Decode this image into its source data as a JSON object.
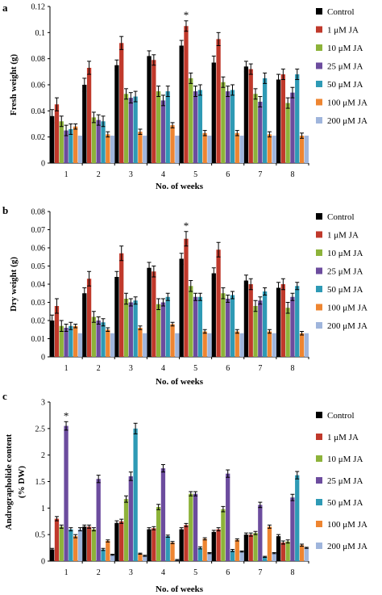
{
  "series_colors": [
    "#000000",
    "#c0392b",
    "#8db33a",
    "#6c4c9e",
    "#2e9ab5",
    "#ee8531",
    "#9fb5dc"
  ],
  "chart_data": [
    {
      "type": "bar",
      "panel_label": "a",
      "categories": [
        "1",
        "2",
        "3",
        "4",
        "5",
        "6",
        "7",
        "8"
      ],
      "xlabel": "No. of weeks",
      "ylabel": "Fresh weight (g)",
      "ylim": [
        0,
        0.12
      ],
      "yticks": [
        "0",
        "0.02",
        "0.04",
        "0.06",
        "0.08",
        "0.1",
        "0.12"
      ],
      "grid": false,
      "legend": "right",
      "annotation": {
        "text": "*",
        "category": "5",
        "series": "1 μM JA"
      },
      "series": [
        {
          "name": "Control",
          "values": [
            0.036,
            0.06,
            0.075,
            0.082,
            0.09,
            0.077,
            0.074,
            0.064
          ],
          "errors": [
            0.005,
            0.005,
            0.004,
            0.004,
            0.004,
            0.005,
            0.004,
            0.004
          ]
        },
        {
          "name": "1 μM JA",
          "values": [
            0.045,
            0.073,
            0.092,
            0.079,
            0.105,
            0.095,
            0.072,
            0.068
          ],
          "errors": [
            0.005,
            0.005,
            0.005,
            0.004,
            0.004,
            0.005,
            0.004,
            0.004
          ]
        },
        {
          "name": "10 μM JA",
          "values": [
            0.032,
            0.035,
            0.053,
            0.055,
            0.065,
            0.062,
            0.053,
            0.046
          ],
          "errors": [
            0.004,
            0.004,
            0.004,
            0.004,
            0.004,
            0.004,
            0.004,
            0.004
          ]
        },
        {
          "name": "25 μM JA",
          "values": [
            0.025,
            0.033,
            0.05,
            0.048,
            0.055,
            0.055,
            0.047,
            0.054
          ],
          "errors": [
            0.004,
            0.004,
            0.004,
            0.004,
            0.004,
            0.004,
            0.004,
            0.004
          ]
        },
        {
          "name": "50 μM JA",
          "values": [
            0.026,
            0.032,
            0.051,
            0.055,
            0.056,
            0.056,
            0.065,
            0.068
          ],
          "errors": [
            0.004,
            0.004,
            0.004,
            0.004,
            0.004,
            0.004,
            0.004,
            0.004
          ]
        },
        {
          "name": "100 μM JA",
          "values": [
            0.028,
            0.022,
            0.024,
            0.029,
            0.023,
            0.023,
            0.022,
            0.021
          ],
          "errors": [
            0.002,
            0.002,
            0.002,
            0.002,
            0.002,
            0.002,
            0.002,
            0.002
          ]
        },
        {
          "name": "200 μM JA",
          "values": [
            0.021,
            0.021,
            0.021,
            0.021,
            0.021,
            0.021,
            0.021,
            0.021
          ],
          "errors": [
            0,
            0,
            0,
            0,
            0,
            0,
            0,
            0
          ]
        }
      ]
    },
    {
      "type": "bar",
      "panel_label": "b",
      "categories": [
        "1",
        "2",
        "3",
        "4",
        "5",
        "6",
        "7",
        "8"
      ],
      "xlabel": "No. of weeks",
      "ylabel": "Dry weight (g)",
      "ylim": [
        0,
        0.08
      ],
      "yticks": [
        "0",
        "0.01",
        "0.02",
        "0.03",
        "0.04",
        "0.05",
        "0.06",
        "0.07",
        "0.08"
      ],
      "grid": false,
      "legend": "right",
      "annotation": {
        "text": "*",
        "category": "5",
        "series": "1 μM JA"
      },
      "series": [
        {
          "name": "Control",
          "values": [
            0.02,
            0.035,
            0.044,
            0.049,
            0.054,
            0.046,
            0.042,
            0.038
          ],
          "errors": [
            0.003,
            0.003,
            0.003,
            0.003,
            0.003,
            0.003,
            0.003,
            0.003
          ]
        },
        {
          "name": "1 μM JA",
          "values": [
            0.028,
            0.043,
            0.057,
            0.047,
            0.065,
            0.059,
            0.04,
            0.04
          ],
          "errors": [
            0.004,
            0.004,
            0.004,
            0.003,
            0.004,
            0.004,
            0.003,
            0.003
          ]
        },
        {
          "name": "10 μM JA",
          "values": [
            0.017,
            0.022,
            0.032,
            0.029,
            0.039,
            0.035,
            0.028,
            0.027
          ],
          "errors": [
            0.003,
            0.003,
            0.003,
            0.003,
            0.003,
            0.003,
            0.003,
            0.003
          ]
        },
        {
          "name": "25 μM JA",
          "values": [
            0.016,
            0.02,
            0.03,
            0.03,
            0.033,
            0.032,
            0.031,
            0.033
          ],
          "errors": [
            0.002,
            0.002,
            0.002,
            0.002,
            0.002,
            0.002,
            0.002,
            0.002
          ]
        },
        {
          "name": "50 μM JA",
          "values": [
            0.017,
            0.019,
            0.031,
            0.033,
            0.033,
            0.034,
            0.036,
            0.039
          ],
          "errors": [
            0.002,
            0.002,
            0.002,
            0.002,
            0.002,
            0.002,
            0.002,
            0.002
          ]
        },
        {
          "name": "100 μM JA",
          "values": [
            0.017,
            0.015,
            0.016,
            0.018,
            0.014,
            0.014,
            0.014,
            0.013
          ],
          "errors": [
            0.001,
            0.001,
            0.001,
            0.001,
            0.001,
            0.001,
            0.001,
            0.001
          ]
        },
        {
          "name": "200 μM JA",
          "values": [
            0.013,
            0.013,
            0.013,
            0.013,
            0.013,
            0.013,
            0.013,
            0.013
          ],
          "errors": [
            0,
            0,
            0,
            0,
            0,
            0,
            0,
            0
          ]
        }
      ]
    },
    {
      "type": "bar",
      "panel_label": "c",
      "categories": [
        "1",
        "2",
        "3",
        "4",
        "5",
        "6",
        "7",
        "8"
      ],
      "xlabel": "No. of weeks",
      "ylabel": "Andrographolide content",
      "ylabel2": "(% DW)",
      "ylim": [
        0,
        3
      ],
      "yticks": [
        "0",
        "0.5",
        "1",
        "1.5",
        "2",
        "2.5",
        "3"
      ],
      "grid": false,
      "legend": "right",
      "annotation": {
        "text": "*",
        "category": "1",
        "series": "25 μM JA"
      },
      "series": [
        {
          "name": "Control",
          "values": [
            0.22,
            0.65,
            0.72,
            0.6,
            0.6,
            0.55,
            0.5,
            0.47
          ],
          "errors": [
            0.02,
            0.03,
            0.04,
            0.03,
            0.03,
            0.03,
            0.03,
            0.03
          ]
        },
        {
          "name": "1 μM JA",
          "values": [
            0.8,
            0.65,
            0.75,
            0.62,
            0.68,
            0.6,
            0.5,
            0.35
          ],
          "errors": [
            0.04,
            0.03,
            0.04,
            0.03,
            0.03,
            0.03,
            0.03,
            0.03
          ]
        },
        {
          "name": "10 μM JA",
          "values": [
            0.65,
            0.6,
            1.17,
            1.02,
            1.27,
            0.98,
            0.53,
            0.37
          ],
          "errors": [
            0.03,
            0.03,
            0.06,
            0.05,
            0.04,
            0.05,
            0.03,
            0.03
          ]
        },
        {
          "name": "25 μM JA",
          "values": [
            2.55,
            1.55,
            1.6,
            1.75,
            1.27,
            1.65,
            1.06,
            1.2
          ],
          "errors": [
            0.08,
            0.07,
            0.08,
            0.07,
            0.04,
            0.07,
            0.05,
            0.06
          ]
        },
        {
          "name": "50 μM JA",
          "values": [
            0.6,
            0.22,
            2.5,
            0.47,
            0.25,
            0.2,
            0.08,
            1.62
          ],
          "errors": [
            0.03,
            0.02,
            0.1,
            0.02,
            0.02,
            0.02,
            0.01,
            0.07
          ]
        },
        {
          "name": "100 μM JA",
          "values": [
            0.47,
            0.38,
            0.14,
            0.35,
            0.42,
            0.4,
            0.65,
            0.3
          ],
          "errors": [
            0.03,
            0.02,
            0.01,
            0.02,
            0.02,
            0.02,
            0.03,
            0.02
          ]
        },
        {
          "name": "200 μM JA",
          "values": [
            0.6,
            0.12,
            0.1,
            0.02,
            0.15,
            0.18,
            0.15,
            0.25
          ],
          "errors": [
            0.03,
            0.01,
            0.01,
            0.01,
            0.01,
            0.01,
            0.01,
            0.01
          ]
        }
      ]
    }
  ]
}
